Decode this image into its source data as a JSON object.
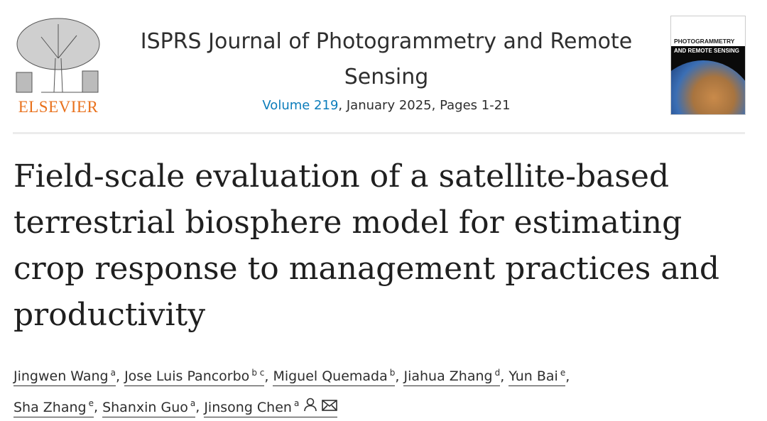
{
  "publisher": {
    "logo_text": "ELSEVIER"
  },
  "journal": {
    "title": "ISPRS Journal of Photogrammetry and Remote Sensing",
    "volume_link": "Volume 219",
    "issue_info": ", January 2025, Pages 1-21"
  },
  "cover": {
    "line1": "PHOTOGRAMMETRY",
    "line2": "AND REMOTE SENSING"
  },
  "article": {
    "title": "Field-scale evaluation of a satellite-based terrestrial biosphere model for estimating crop response to management practices and productivity"
  },
  "authors": [
    {
      "name": "Jingwen Wang",
      "aff": "a"
    },
    {
      "name": "Jose Luis Pancorbo",
      "aff": "b c"
    },
    {
      "name": "Miguel Quemada",
      "aff": "b"
    },
    {
      "name": "Jiahua Zhang",
      "aff": "d"
    },
    {
      "name": "Yun Bai",
      "aff": "e"
    },
    {
      "name": "Sha Zhang",
      "aff": "e"
    },
    {
      "name": "Shanxin Guo",
      "aff": "a"
    },
    {
      "name": "Jinsong Chen",
      "aff": "a",
      "icons": [
        "person-icon",
        "envelope-icon"
      ]
    }
  ],
  "separator": ", "
}
